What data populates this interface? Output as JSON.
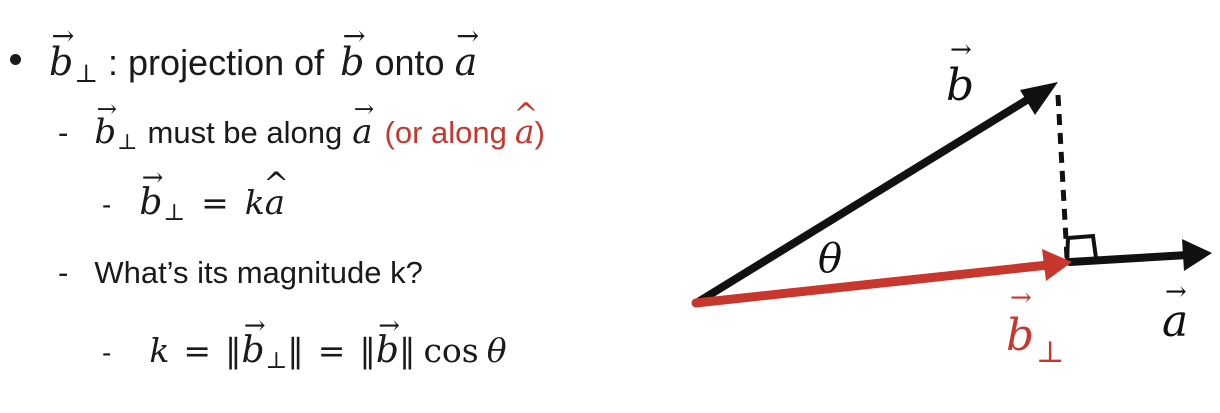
{
  "bullet": {
    "separator": " : ",
    "label_text": "projection of",
    "onto_text": "onto",
    "vector_b": "b",
    "vector_a": "a",
    "perp_symbol": "⊥"
  },
  "sub1": {
    "dash": "-",
    "text": "must be along",
    "red_open": "(or along",
    "red_close": ")",
    "hat_a": "a"
  },
  "sub2": {
    "dash": "-",
    "equals": "=",
    "k": "k",
    "hat_a": "a"
  },
  "sub3": {
    "dash": "-",
    "text": "What’s its magnitude k?"
  },
  "sub4": {
    "dash": "-",
    "k": "k",
    "equals1": "=",
    "equals2": "=",
    "norm_open": "‖",
    "norm_close": "‖",
    "cos_text": "cos",
    "theta": "θ"
  },
  "diagram": {
    "label_b": "b",
    "label_a": "a",
    "label_b_perp": "b",
    "perp_symbol": "⊥",
    "label_theta": "θ",
    "colors": {
      "black": "#111111",
      "red": "#c8372d"
    }
  }
}
